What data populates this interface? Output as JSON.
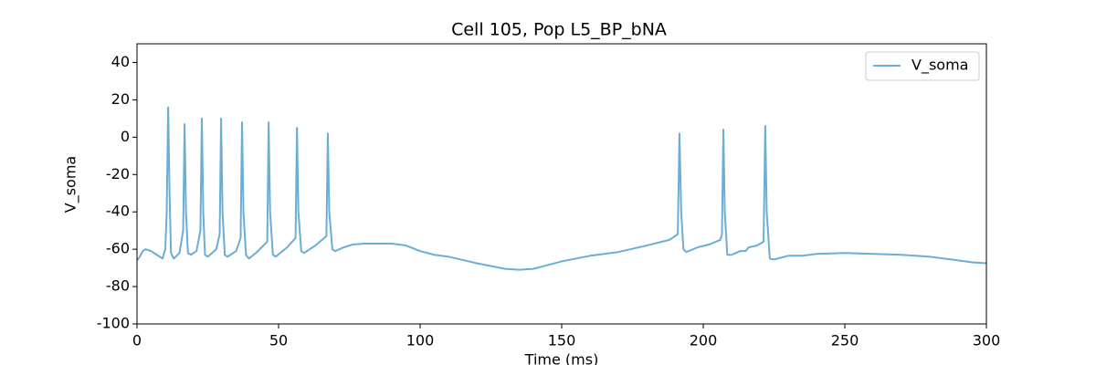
{
  "chart_data": {
    "type": "line",
    "title": "Cell 105, Pop L5_BP_bNA",
    "x_label": "Time (ms)",
    "y_label": "V_soma",
    "x": [
      0,
      1,
      2,
      3,
      5,
      7,
      9,
      10,
      10.5,
      11,
      11.5,
      12,
      13,
      15,
      16.3,
      16.8,
      17.3,
      18,
      19,
      21,
      22.4,
      22.9,
      23.4,
      24,
      25,
      28,
      29.2,
      29.7,
      30.2,
      31,
      32,
      35,
      36.6,
      37.1,
      37.6,
      38.5,
      39.5,
      42,
      46,
      46.5,
      47,
      48,
      49,
      53,
      56,
      56.5,
      57,
      58,
      59,
      63,
      66.9,
      67.4,
      67.9,
      69,
      70,
      73,
      76,
      80,
      90,
      95,
      100,
      105,
      110,
      120,
      130,
      135,
      140,
      145,
      150,
      160,
      170,
      180,
      188,
      191,
      191.6,
      192.2,
      193,
      194,
      198,
      202,
      206,
      206.6,
      207.1,
      207.6,
      208.5,
      210,
      213,
      215,
      216,
      219,
      221.3,
      221.9,
      222.4,
      223.5,
      225,
      230,
      235,
      240,
      250,
      260,
      270,
      280,
      290,
      295,
      300
    ],
    "series": [
      {
        "name": "V_soma",
        "color": "#6aaed6",
        "values": [
          -66,
          -64,
          -61,
          -60,
          -61,
          -63,
          -65,
          -60,
          -40,
          16,
          -30,
          -62,
          -65,
          -62,
          -50,
          7,
          -40,
          -62,
          -63,
          -61,
          -50,
          10,
          -40,
          -63,
          -64,
          -60,
          -52,
          10,
          -40,
          -63,
          -64,
          -61,
          -54,
          8,
          -40,
          -63,
          -65,
          -62,
          -56,
          8,
          -40,
          -63,
          -64,
          -59,
          -54,
          5,
          -40,
          -61,
          -62,
          -58,
          -53,
          2,
          -40,
          -60,
          -61,
          -59,
          -57.5,
          -57,
          -57,
          -58,
          -61,
          -63,
          -64,
          -67.5,
          -70.5,
          -71,
          -70.5,
          -68.5,
          -66.5,
          -63.5,
          -61.5,
          -58,
          -55,
          -52,
          2,
          -40,
          -60,
          -61.5,
          -59,
          -57.5,
          -55,
          -52,
          4,
          -40,
          -63,
          -63,
          -61,
          -61,
          -59,
          -58,
          -56,
          6,
          -40,
          -65,
          -65.5,
          -63.5,
          -63.5,
          -62.5,
          -62,
          -62.5,
          -63,
          -64,
          -66,
          -67,
          -67.5
        ]
      }
    ],
    "xlim": [
      0,
      300
    ],
    "xticks": [
      0,
      50,
      100,
      150,
      200,
      250,
      300
    ],
    "ylim": [
      -100,
      50
    ],
    "yticks": [
      -100,
      -80,
      -60,
      -40,
      -20,
      0,
      20,
      40
    ],
    "legend": "upper right"
  }
}
